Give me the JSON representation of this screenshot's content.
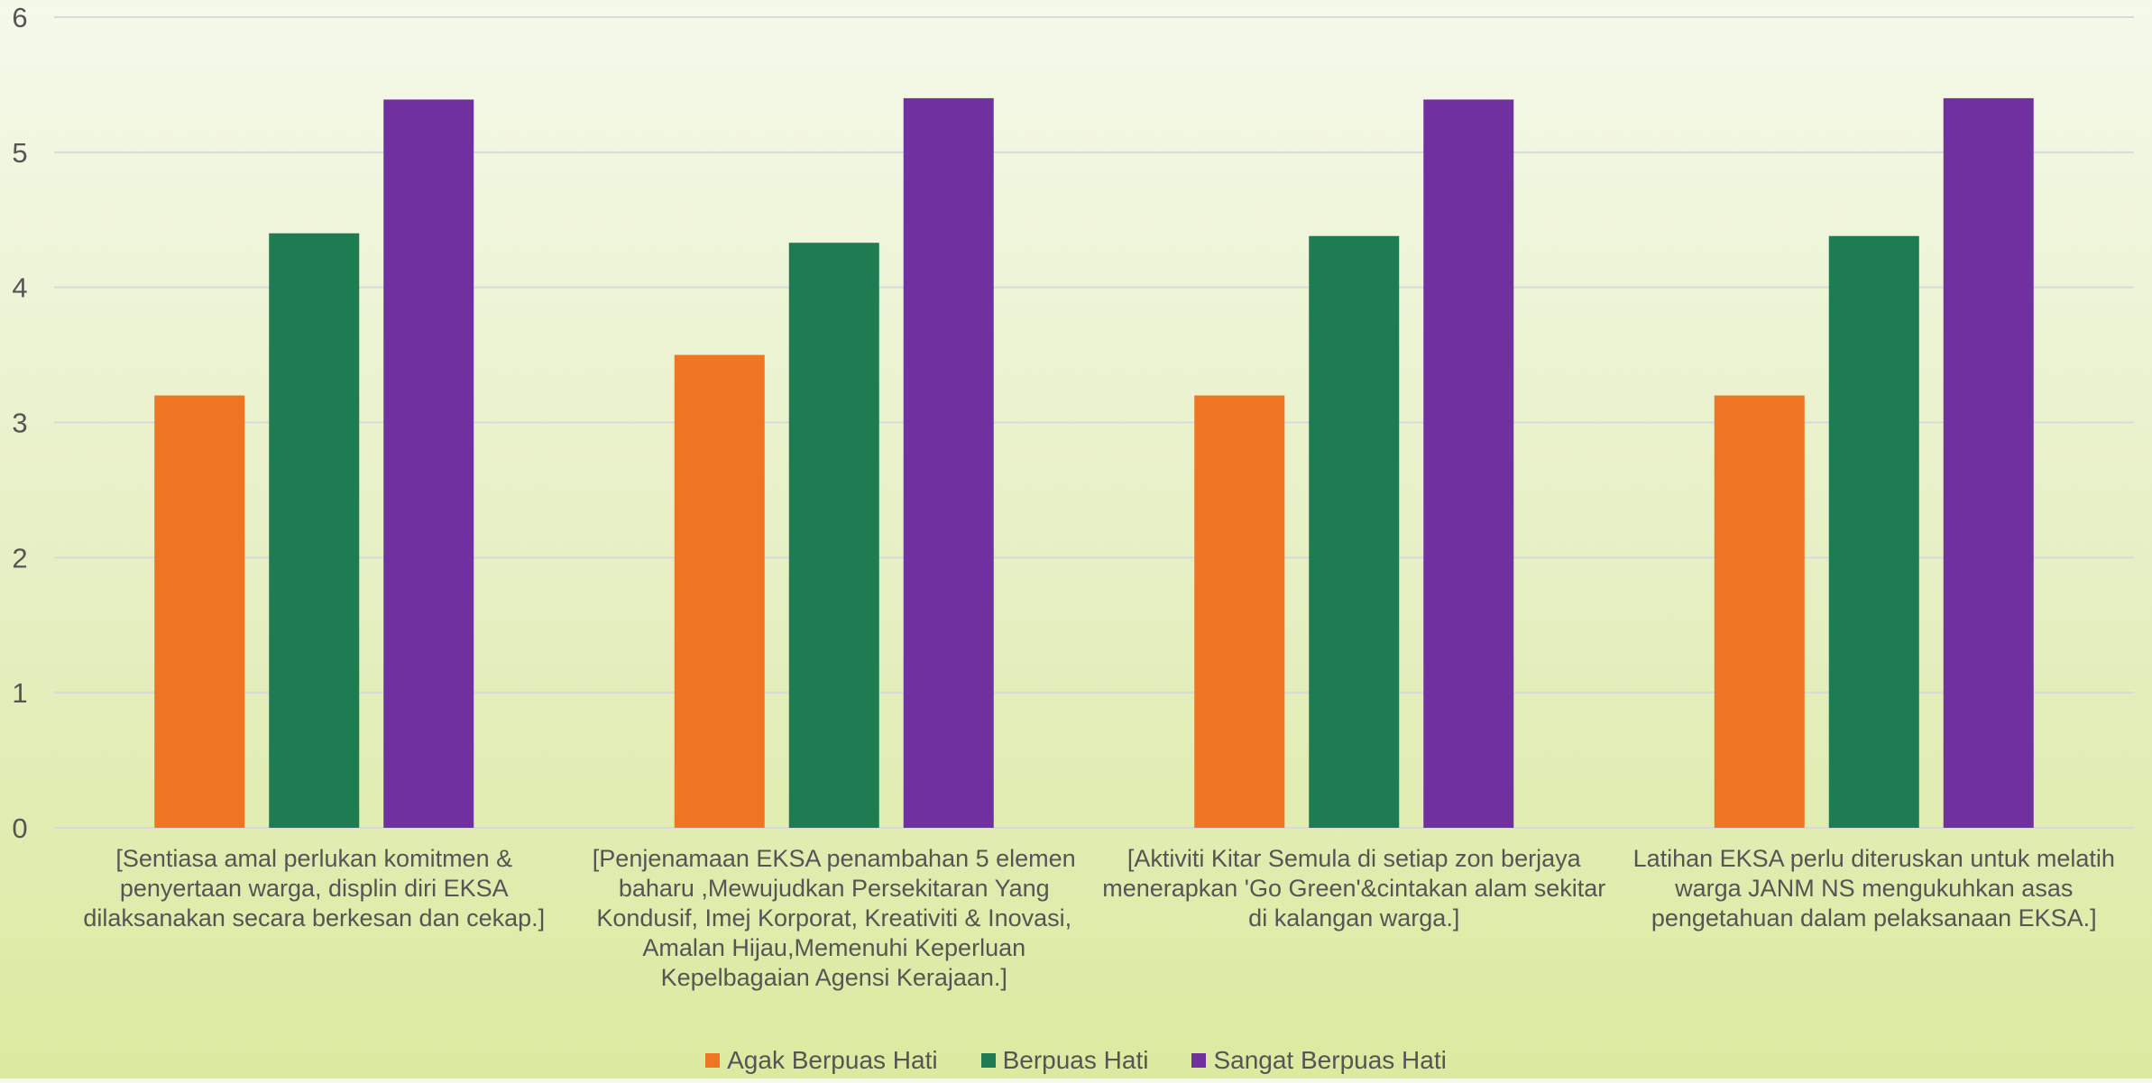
{
  "chart_data": {
    "type": "bar",
    "categories": [
      "[Sentiasa amal perlukan komitmen & penyertaan warga, displin diri EKSA dilaksanakan secara berkesan dan cekap.]",
      "[Penjenamaan EKSA penambahan 5 elemen baharu ,Mewujudkan Persekitaran Yang Kondusif, Imej Korporat, Kreativiti & Inovasi, Amalan Hijau,Memenuhi Keperluan Kepelbagaian Agensi Kerajaan.]",
      "[Aktiviti Kitar Semula di setiap zon berjaya menerapkan 'Go Green'&cintakan alam sekitar di kalangan warga.]",
      "Latihan EKSA perlu diteruskan untuk melatih warga JANM NS mengukuhkan asas pengetahuan dalam pelaksanaan EKSA.]"
    ],
    "series": [
      {
        "name": "Agak Berpuas Hati",
        "color": "#ee7623",
        "values": [
          3.2,
          3.5,
          3.2,
          3.2
        ]
      },
      {
        "name": "Berpuas Hati",
        "color": "#1e7c52",
        "values": [
          4.4,
          4.33,
          4.38,
          4.38
        ]
      },
      {
        "name": "Sangat Berpuas Hati",
        "color": "#7030a0",
        "values": [
          5.39,
          5.4,
          5.39,
          5.4
        ]
      }
    ],
    "ylim": [
      0,
      6
    ],
    "yticks": [
      0,
      1,
      2,
      3,
      4,
      5,
      6
    ],
    "grid": true,
    "legend_position": "bottom",
    "title": "",
    "xlabel": "",
    "ylabel": ""
  }
}
